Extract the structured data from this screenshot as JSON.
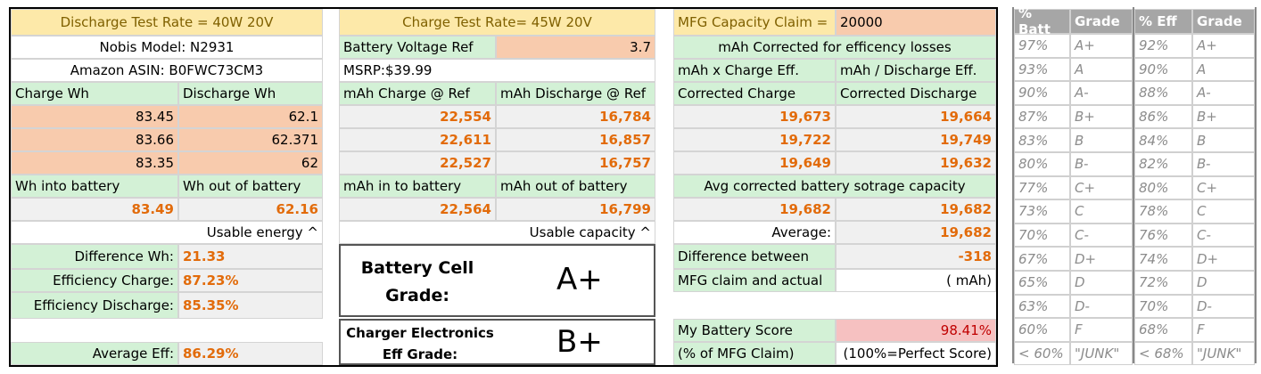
{
  "header": {
    "discharge_rate": "Discharge Test Rate = 40W 20V",
    "charge_rate": "Charge Test Rate= 45W 20V",
    "mfg_label": "MFG Capacity Claim =",
    "mfg_claim": "20000"
  },
  "info": {
    "model": "Nobis  Model: N2931",
    "asin": "Amazon ASIN: B0FWC73CM3",
    "voltage_label": "Battery Voltage Ref",
    "voltage": "3.7",
    "msrp": "MSRP:$39.99"
  },
  "wh": {
    "charge_header": "Charge Wh",
    "discharge_header": "Discharge Wh",
    "charge": [
      "83.45",
      "83.66",
      "83.35"
    ],
    "discharge": [
      "62.1",
      "62.371",
      "62"
    ],
    "into_header": "Wh into battery",
    "out_header": "Wh out of battery",
    "into": "83.49",
    "out": "62.16",
    "usable": "Usable energy ^"
  },
  "mah": {
    "charge_header": "mAh Charge @ Ref",
    "discharge_header": "mAh Discharge @ Ref",
    "charge": [
      "22,554",
      "22,611",
      "22,527"
    ],
    "discharge": [
      "16,784",
      "16,857",
      "16,757"
    ],
    "into_header": "mAh in to battery",
    "out_header": "mAh out of battery",
    "into": "22,564",
    "out": "16,799",
    "usable": "Usable capacity ^"
  },
  "corrected": {
    "title": "mAh Corrected for efficency losses",
    "charge_method": "mAh x Charge Eff.",
    "discharge_method": "mAh / Discharge Eff.",
    "charge_header": "Corrected  Charge",
    "discharge_header": "Corrected  Discharge",
    "charge": [
      "19,673",
      "19,722",
      "19,649"
    ],
    "discharge": [
      "19,664",
      "19,749",
      "19,632"
    ],
    "avg_title": "Avg corrected battery sotrage capacity",
    "avg_charge": "19,682",
    "avg_discharge": "19,682",
    "average_label": "Average:",
    "average": "19,682"
  },
  "efficiency": {
    "difference_label": "Difference Wh:",
    "difference": "21.33",
    "charge_label": "Efficiency Charge:",
    "charge": "87.23%",
    "discharge_label": "Efficiency Discharge:",
    "discharge": "85.35%",
    "average_label": "Average Eff:",
    "average": "86.29%"
  },
  "grades": {
    "cell_label": "Battery Cell Grade:",
    "cell": "A+",
    "charger_label": "Charger Electronics Eff Grade:",
    "charger": "B+"
  },
  "claim": {
    "diff_label_1": "Difference between",
    "diff": "-318",
    "diff_label_2": "MFG claim and actual",
    "unit": "( mAh)",
    "score_label": "My Battery Score",
    "score": "98.41%",
    "score_note_label": "(% of MFG Claim)",
    "score_note": "(100%=Perfect Score)"
  },
  "grade_table": {
    "headers": [
      "% Batt",
      "Grade",
      "% Eff",
      "Grade"
    ],
    "rows": [
      [
        "97%",
        "A+",
        "92%",
        "A+"
      ],
      [
        "93%",
        "A",
        "90%",
        "A"
      ],
      [
        "90%",
        "A-",
        "88%",
        "A-"
      ],
      [
        "87%",
        "B+",
        "86%",
        "B+"
      ],
      [
        "83%",
        "B",
        "84%",
        "B"
      ],
      [
        "80%",
        "B-",
        "82%",
        "B-"
      ],
      [
        "77%",
        "C+",
        "80%",
        "C+"
      ],
      [
        "73%",
        "C",
        "78%",
        "C"
      ],
      [
        "70%",
        "C-",
        "76%",
        "C-"
      ],
      [
        "67%",
        "D+",
        "74%",
        "D+"
      ],
      [
        "65%",
        "D",
        "72%",
        "D"
      ],
      [
        "63%",
        "D-",
        "70%",
        "D-"
      ],
      [
        "60%",
        "F",
        "68%",
        "F"
      ],
      [
        "< 60%",
        "\"JUNK\"",
        "< 68%",
        "\"JUNK\""
      ]
    ]
  }
}
